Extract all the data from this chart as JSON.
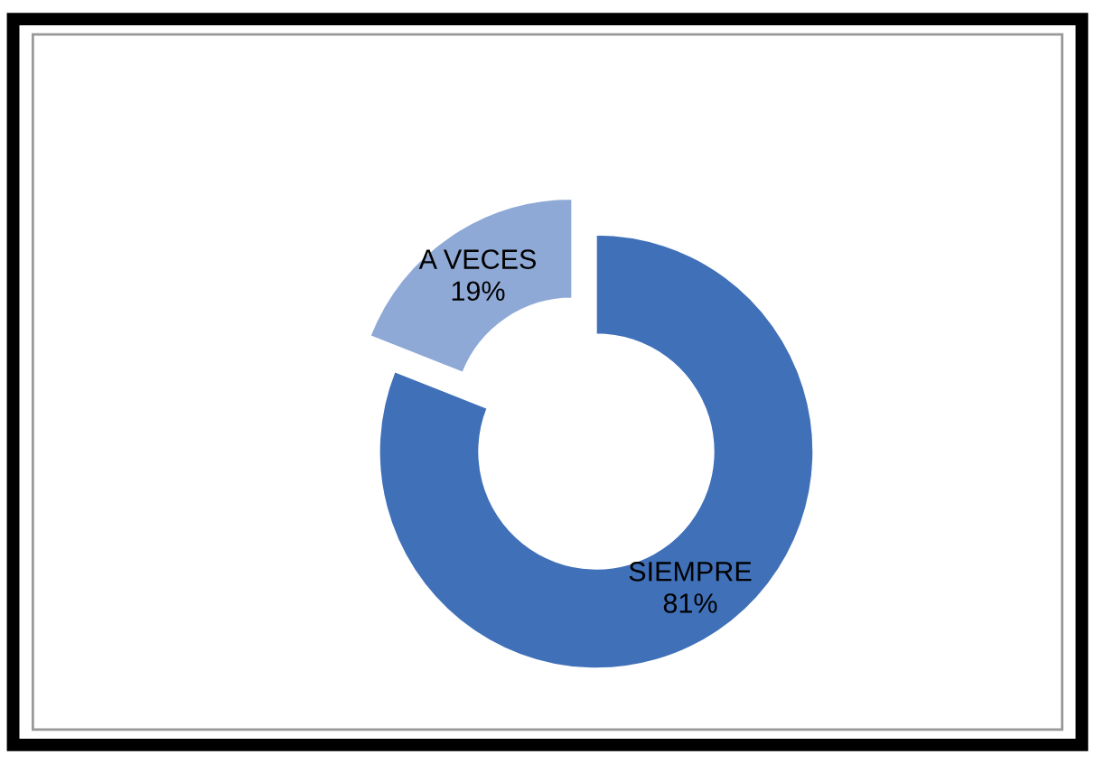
{
  "chart_data": {
    "type": "donut",
    "categories": [
      "SIEMPRE",
      "A VECES"
    ],
    "values": [
      81,
      19
    ],
    "value_labels": [
      "81%",
      "19%"
    ],
    "colors": [
      "#3f70b8",
      "#8fa9d6"
    ],
    "legend": false
  }
}
